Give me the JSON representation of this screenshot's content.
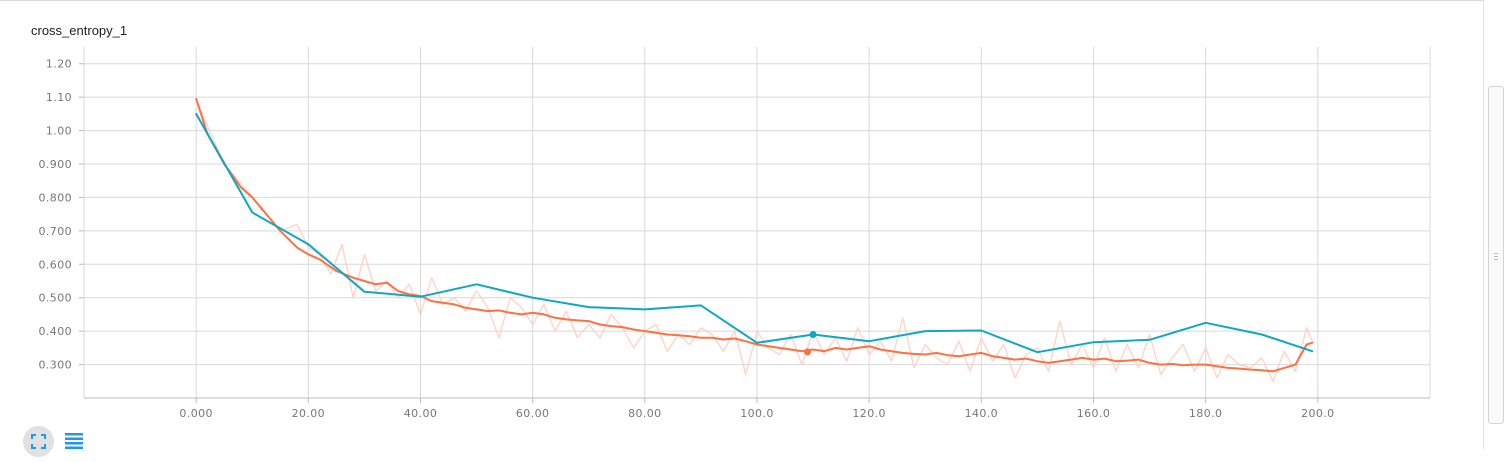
{
  "card": {
    "title": "cross_entropy_1"
  },
  "colors": {
    "raw": "#ffccbc",
    "smoothed": "#ff7043",
    "validation": "#0ca9c1",
    "grid": "#d9d9d9"
  },
  "icons": {
    "fit": "fit-to-domain-icon",
    "list": "data-list-icon"
  },
  "chart_data": {
    "type": "line",
    "title": "cross_entropy_1",
    "xlabel": "",
    "ylabel": "",
    "xlim": [
      -20,
      220
    ],
    "ylim": [
      0.2,
      1.25
    ],
    "grid": true,
    "legend": "none",
    "x_ticks": [
      0,
      20,
      40,
      60,
      80,
      100,
      120,
      140,
      160,
      180,
      200
    ],
    "x_tick_labels": [
      "0.000",
      "20.00",
      "40.00",
      "60.00",
      "80.00",
      "100.0",
      "120.0",
      "140.0",
      "160.0",
      "180.0",
      "200.0"
    ],
    "y_ticks": [
      0.3,
      0.4,
      0.5,
      0.6,
      0.7,
      0.8,
      0.9,
      1.0,
      1.1,
      1.2
    ],
    "y_tick_labels": [
      "0.300",
      "0.400",
      "0.500",
      "0.600",
      "0.700",
      "0.800",
      "0.900",
      "1.00",
      "1.10",
      "1.20"
    ],
    "series": [
      {
        "role": "raw",
        "x": [
          0,
          5,
          10,
          15,
          18,
          20,
          22,
          24,
          26,
          28,
          30,
          32,
          34,
          36,
          38,
          40,
          42,
          44,
          46,
          48,
          50,
          52,
          54,
          56,
          58,
          60,
          62,
          64,
          66,
          68,
          70,
          72,
          74,
          76,
          78,
          80,
          82,
          84,
          86,
          88,
          90,
          92,
          94,
          96,
          98,
          100,
          102,
          104,
          106,
          108,
          110,
          112,
          114,
          116,
          118,
          120,
          122,
          124,
          126,
          128,
          130,
          132,
          134,
          136,
          138,
          140,
          142,
          144,
          146,
          148,
          150,
          152,
          154,
          156,
          158,
          160,
          162,
          164,
          166,
          168,
          170,
          172,
          174,
          176,
          178,
          180,
          182,
          184,
          186,
          188,
          190,
          192,
          194,
          196,
          198,
          199
        ],
        "y": [
          1.09,
          0.9,
          0.8,
          0.7,
          0.72,
          0.65,
          0.63,
          0.57,
          0.66,
          0.5,
          0.63,
          0.52,
          0.55,
          0.5,
          0.54,
          0.45,
          0.56,
          0.48,
          0.5,
          0.46,
          0.52,
          0.47,
          0.38,
          0.5,
          0.47,
          0.42,
          0.48,
          0.4,
          0.46,
          0.38,
          0.42,
          0.38,
          0.45,
          0.41,
          0.35,
          0.4,
          0.42,
          0.34,
          0.39,
          0.36,
          0.41,
          0.39,
          0.34,
          0.4,
          0.27,
          0.4,
          0.35,
          0.33,
          0.39,
          0.3,
          0.4,
          0.33,
          0.38,
          0.31,
          0.41,
          0.33,
          0.37,
          0.31,
          0.44,
          0.29,
          0.36,
          0.32,
          0.3,
          0.37,
          0.28,
          0.38,
          0.31,
          0.36,
          0.26,
          0.33,
          0.35,
          0.28,
          0.43,
          0.3,
          0.36,
          0.29,
          0.38,
          0.28,
          0.36,
          0.29,
          0.39,
          0.27,
          0.32,
          0.36,
          0.28,
          0.35,
          0.26,
          0.33,
          0.3,
          0.29,
          0.32,
          0.25,
          0.34,
          0.28,
          0.41,
          0.37
        ]
      },
      {
        "role": "smoothed",
        "x": [
          0,
          2,
          5,
          8,
          10,
          12,
          15,
          18,
          20,
          22,
          25,
          28,
          30,
          32,
          34,
          36,
          38,
          40,
          42,
          44,
          46,
          48,
          50,
          52,
          54,
          56,
          58,
          60,
          62,
          64,
          66,
          68,
          70,
          72,
          74,
          76,
          78,
          80,
          82,
          84,
          86,
          88,
          90,
          92,
          94,
          96,
          98,
          100,
          102,
          104,
          106,
          108,
          110,
          112,
          114,
          116,
          118,
          120,
          122,
          124,
          126,
          128,
          130,
          132,
          134,
          136,
          138,
          140,
          142,
          144,
          146,
          148,
          150,
          152,
          154,
          156,
          158,
          160,
          162,
          164,
          166,
          168,
          170,
          172,
          174,
          176,
          178,
          180,
          182,
          184,
          186,
          188,
          190,
          192,
          194,
          196,
          198,
          199
        ],
        "y": [
          1.095,
          0.99,
          0.9,
          0.83,
          0.8,
          0.76,
          0.7,
          0.65,
          0.63,
          0.615,
          0.58,
          0.56,
          0.55,
          0.54,
          0.545,
          0.52,
          0.51,
          0.505,
          0.49,
          0.485,
          0.48,
          0.47,
          0.465,
          0.46,
          0.462,
          0.455,
          0.45,
          0.455,
          0.45,
          0.44,
          0.435,
          0.432,
          0.43,
          0.42,
          0.415,
          0.412,
          0.405,
          0.4,
          0.395,
          0.39,
          0.388,
          0.385,
          0.38,
          0.38,
          0.375,
          0.378,
          0.37,
          0.36,
          0.355,
          0.35,
          0.345,
          0.34,
          0.345,
          0.34,
          0.35,
          0.345,
          0.35,
          0.355,
          0.345,
          0.34,
          0.335,
          0.332,
          0.33,
          0.335,
          0.328,
          0.325,
          0.33,
          0.335,
          0.325,
          0.32,
          0.315,
          0.318,
          0.31,
          0.305,
          0.31,
          0.315,
          0.32,
          0.315,
          0.318,
          0.31,
          0.312,
          0.315,
          0.305,
          0.3,
          0.302,
          0.298,
          0.3,
          0.3,
          0.295,
          0.29,
          0.288,
          0.285,
          0.283,
          0.28,
          0.29,
          0.3,
          0.36,
          0.365
        ]
      },
      {
        "role": "validation",
        "x": [
          0,
          10,
          20,
          30,
          40,
          50,
          60,
          70,
          80,
          90,
          100,
          110,
          120,
          130,
          140,
          150,
          160,
          170,
          180,
          190,
          199
        ],
        "y": [
          1.05,
          0.755,
          0.66,
          0.518,
          0.503,
          0.54,
          0.5,
          0.472,
          0.465,
          0.477,
          0.365,
          0.39,
          0.37,
          0.4,
          0.402,
          0.337,
          0.367,
          0.374,
          0.425,
          0.39,
          0.34
        ]
      }
    ],
    "highlight_points": [
      {
        "role": "validation",
        "x": 110,
        "y": 0.39
      },
      {
        "role": "smoothed",
        "x": 109,
        "y": 0.338
      }
    ]
  }
}
